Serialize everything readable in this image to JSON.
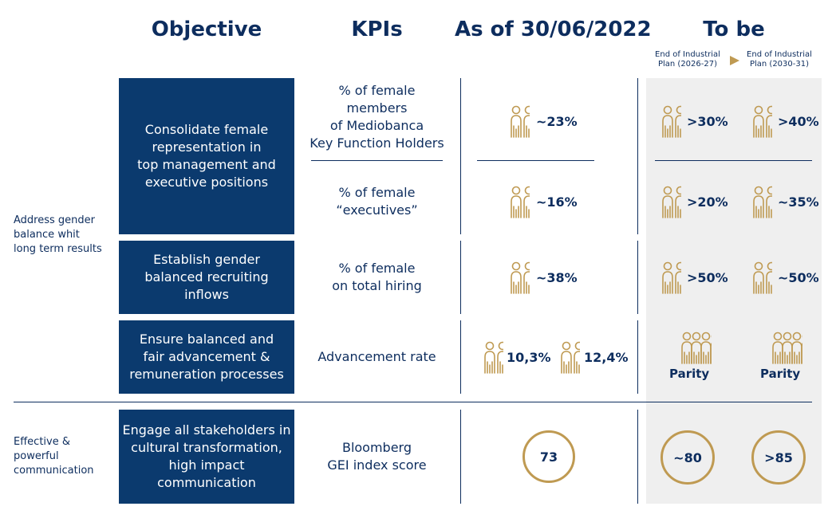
{
  "headers": {
    "objective": "Objective",
    "kpis": "KPIs",
    "as_of": "As of 30/06/2022",
    "to_be": "To be",
    "end_plan_1": "End of Industrial\nPlan (2026-27)",
    "end_plan_2": "End of Industrial\nPlan (2030-31)"
  },
  "categories": {
    "gender": "Address gender\nbalance whit\nlong term results",
    "communication": "Effective &\npowerful\ncommunication"
  },
  "rows": [
    {
      "objective": "Consolidate female\nrepresentation in\ntop management and\nexecutive positions",
      "kpi": "% of female members\nof Mediobanca\nKey Function Holders",
      "current": "~23%",
      "target1": ">30%",
      "target2": ">40%"
    },
    {
      "kpi": "% of female\n“executives”",
      "current": "~16%",
      "target1": ">20%",
      "target2": "~35%"
    },
    {
      "objective": "Establish gender\nbalanced recruiting\ninflows",
      "kpi": "% of female\non total hiring",
      "current": "~38%",
      "target1": ">50%",
      "target2": "~50%"
    },
    {
      "objective": "Ensure balanced and\nfair advancement &\nremuneration processes",
      "kpi": "Advancement rate",
      "current_a": "10,3%",
      "current_b": "12,4%",
      "target1": "Parity",
      "target2": "Parity"
    },
    {
      "objective": "Engage all stakeholders in\ncultural transformation,\nhigh impact\ncommunication",
      "kpi": "Bloomberg\nGEI index score",
      "current": "73",
      "target1": "~80",
      "target2": ">85"
    }
  ],
  "colors": {
    "navy": "#0b3a6e",
    "gold": "#bf9a52",
    "gray": "#efefef"
  },
  "icons": {
    "people": "female-male-pair-icon",
    "crowd": "group-of-people-icon",
    "arrow": "triangle-right-icon"
  }
}
